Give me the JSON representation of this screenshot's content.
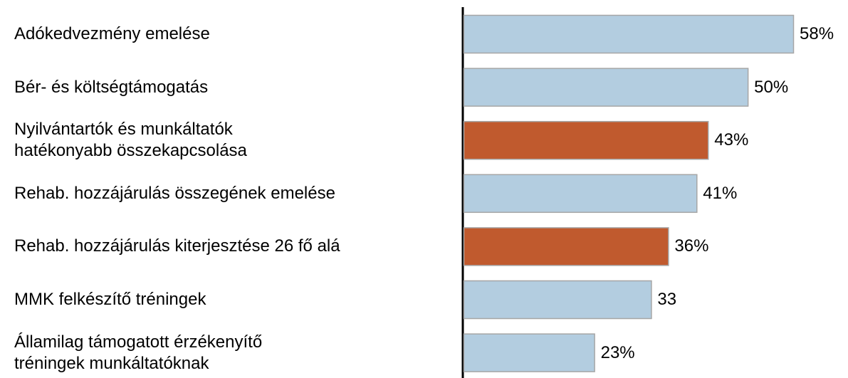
{
  "chart_data": {
    "type": "barh",
    "categories": [
      "Adókedvezmény emelése",
      "Bér- és költségtámogatás",
      "Nyilvántartók és munkáltatók\nhatékonyabb összekapcsolása",
      "Rehab. hozzájárulás összegének emelése",
      "Rehab. hozzájárulás kiterjesztése 26 fő alá",
      "MMK felkészítő tréningek",
      "Államilag támogatott érzékenyítő\ntréningek munkáltatóknak"
    ],
    "values": [
      58,
      50,
      43,
      41,
      36,
      33,
      23
    ],
    "value_labels": [
      "58%",
      "50%",
      "43%",
      "41%",
      "36%",
      "33",
      "23%"
    ],
    "colors": [
      "#b3cde0",
      "#b3cde0",
      "#c05a2e",
      "#b3cde0",
      "#c05a2e",
      "#b3cde0",
      "#b3cde0"
    ]
  }
}
